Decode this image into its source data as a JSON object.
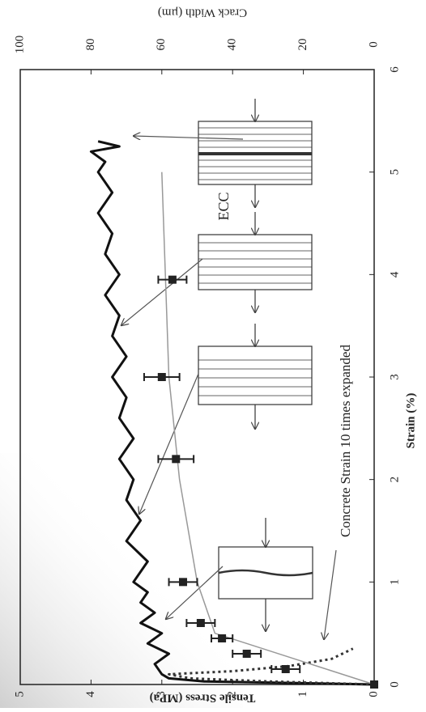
{
  "chart_data": {
    "type": "line",
    "x_label": "Strain (%)",
    "y_label": "Tensile Stress (MPa)",
    "y2_label": "Crack Width (µm)",
    "xlim": [
      0,
      6
    ],
    "xticks": [
      0,
      1,
      2,
      3,
      4,
      5,
      6
    ],
    "ylim": [
      0,
      5
    ],
    "yticks": [
      0,
      1,
      2,
      3,
      4,
      5
    ],
    "y2lim": [
      0,
      100
    ],
    "y2ticks": [
      0,
      20,
      40,
      60,
      80,
      100
    ],
    "annotations": [
      "ECC",
      "Concrete Strain 10 times expanded"
    ],
    "series": [
      {
        "style": "solid",
        "color": "#111111",
        "x": [
          0,
          0.03,
          0.06,
          0.1,
          0.2,
          0.3,
          0.4,
          0.5,
          0.6,
          0.7,
          0.8,
          0.9,
          1.0,
          1.2,
          1.4,
          1.6,
          1.8,
          2.0,
          2.2,
          2.4,
          2.6,
          2.8,
          3.0,
          3.2,
          3.4,
          3.6,
          3.8,
          4.0,
          4.2,
          4.4,
          4.6,
          4.8,
          5.0,
          5.1,
          5.2,
          5.25,
          5.3
        ],
        "values": [
          0,
          2.4,
          2.9,
          3.0,
          3.1,
          2.9,
          3.2,
          3.0,
          3.3,
          3.1,
          3.3,
          3.2,
          3.4,
          3.2,
          3.5,
          3.3,
          3.5,
          3.4,
          3.6,
          3.4,
          3.6,
          3.5,
          3.7,
          3.5,
          3.7,
          3.6,
          3.8,
          3.6,
          3.8,
          3.7,
          3.9,
          3.7,
          3.9,
          3.8,
          4.0,
          3.6,
          3.9
        ]
      },
      {
        "style": "dotted",
        "color": "#333333",
        "x": [
          0,
          0.03,
          0.06,
          0.1,
          0.13,
          0.18,
          0.25,
          0.35
        ],
        "values": [
          0,
          1.5,
          2.6,
          2.9,
          2.0,
          1.2,
          0.6,
          0.3
        ]
      },
      {
        "style": "thin",
        "color": "#999999",
        "axis": "y2",
        "x": [
          0,
          0.5,
          1,
          2,
          3,
          4,
          5
        ],
        "values": [
          0,
          45,
          50,
          55,
          58,
          59,
          60
        ]
      },
      {
        "style": "square",
        "color": "#222222",
        "axis": "y2",
        "x": [
          0,
          0.15,
          0.3,
          0.45,
          0.6,
          1.0,
          2.2,
          3.0,
          3.95
        ],
        "values": [
          0,
          25,
          36,
          43,
          49,
          54,
          56,
          60,
          57
        ],
        "errors": [
          0,
          4,
          4,
          3,
          4,
          4,
          5,
          5,
          4
        ]
      }
    ]
  }
}
